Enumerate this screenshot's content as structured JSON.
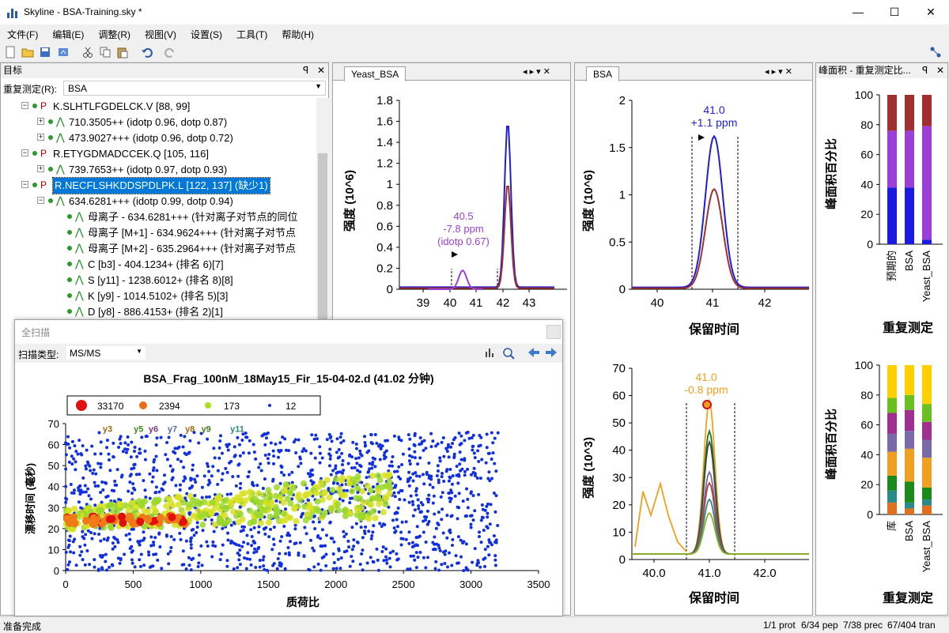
{
  "app": {
    "title": "Skyline - BSA-Training.sky *"
  },
  "menu": [
    "文件(F)",
    "编辑(E)",
    "调整(R)",
    "视图(V)",
    "设置(S)",
    "工具(T)",
    "帮助(H)"
  ],
  "targets": {
    "title": "目标",
    "replicate_label": "重复测定(R):",
    "replicate_value": "BSA",
    "rows": [
      {
        "text": "K.SLHTLFGDELCK.V [88, 99]",
        "level": 0
      },
      {
        "text": "710.3505++ (idotp 0.96, dotp 0.87)",
        "level": 1
      },
      {
        "text": "473.9027+++ (idotp 0.96, dotp 0.72)",
        "level": 1
      },
      {
        "text": "R.ETYGDMADCCEK.Q [105, 116]",
        "level": 0
      },
      {
        "text": "739.7653++ (idotp 0.97, dotp 0.93)",
        "level": 1
      },
      {
        "text": "R.NECFLSHKDDSPDLPK.L [122, 137] (缺少1)",
        "level": 0
      },
      {
        "text": "634.6281+++ (idotp 0.99, dotp 0.94)",
        "level": 1
      },
      {
        "text": "母离子 - 634.6281+++ (针对离子对节点的同位",
        "level": 2
      },
      {
        "text": "母离子 [M+1] - 634.9624+++ (针对离子对节点",
        "level": 2
      },
      {
        "text": "母离子 [M+2] - 635.2964+++ (针对离子对节点",
        "level": 2
      },
      {
        "text": "C [b3] - 404.1234+ (排名 6)[7]",
        "level": 2
      },
      {
        "text": "S [y11] - 1238.6012+ (排名 8)[8]",
        "level": 2
      },
      {
        "text": "K [y9] - 1014.5102+ (排名 5)[3]",
        "level": 2
      },
      {
        "text": "D [y8] - 886.4153+ (排名 2)[1]",
        "level": 2
      }
    ]
  },
  "fullscan": {
    "title": "全扫描",
    "scan_type_label": "扫描类型:",
    "scan_type_value": "MS/MS",
    "chart_title": "BSA_Frag_100nM_18May15_Fir_15-04-02.d (41.02 分钟)",
    "legend": [
      "33170",
      "2394",
      "173",
      "12"
    ],
    "ion_labels": [
      "y3",
      "y5",
      "y6",
      "y7",
      "y8",
      "y9",
      "y11"
    ],
    "xlabel": "质荷比",
    "ylabel": "漂移时间 (毫秒)",
    "xticks": [
      "0",
      "500",
      "1000",
      "1500",
      "2000",
      "2500",
      "3000",
      "3500"
    ],
    "yticks": [
      "0",
      "10",
      "20",
      "30",
      "40",
      "50",
      "60",
      "70"
    ]
  },
  "yeast_panel": {
    "tab": "Yeast_BSA",
    "ylabel": "强度 (10^6)",
    "yticks": [
      "0",
      "0.2",
      "0.4",
      "0.6",
      "0.8",
      "1",
      "1.2",
      "1.4",
      "1.6",
      "1.8"
    ],
    "xticks": [
      "39",
      "40",
      "41",
      "42",
      "43"
    ],
    "annot": [
      "40.5",
      "-7.8 ppm",
      "(idotp 0.67)"
    ]
  },
  "bsa_panel": {
    "tab": "BSA",
    "top_ylabel": "强度 (10^6)",
    "top_yticks": [
      "0",
      "0.5",
      "1",
      "1.5",
      "2"
    ],
    "top_xticks": [
      "40",
      "41",
      "42"
    ],
    "top_annot": [
      "41.0",
      "+1.1 ppm"
    ],
    "xlabel": "保留时间",
    "bottom_ylabel": "强度 (10^3)",
    "bottom_yticks": [
      "0",
      "10",
      "20",
      "30",
      "40",
      "50",
      "60",
      "70"
    ],
    "bottom_xticks": [
      "40.0",
      "41.0",
      "42.0"
    ],
    "bottom_annot": [
      "41.0",
      "-0.8 ppm"
    ]
  },
  "peak_area": {
    "title": "峰面积 - 重复测定比...",
    "ylabel": "峰面积百分比",
    "xlabel": "重复测定",
    "yticks": [
      "0",
      "20",
      "40",
      "60",
      "80",
      "100"
    ],
    "top_cats": [
      "预期的",
      "BSA",
      "Yeast_BSA"
    ],
    "bottom_cats": [
      "库",
      "BSA",
      "Yeast_BSA"
    ]
  },
  "status": {
    "left": "准备完成",
    "right": [
      "1/1 prot",
      "6/34 pep",
      "7/38 prec",
      "67/404 tran"
    ]
  },
  "colors": {
    "blue": "#1e1ed6",
    "darkred": "#a03030",
    "purple": "#9b3fd6",
    "orange": "#f0a020",
    "green": "#1b8a1b"
  }
}
